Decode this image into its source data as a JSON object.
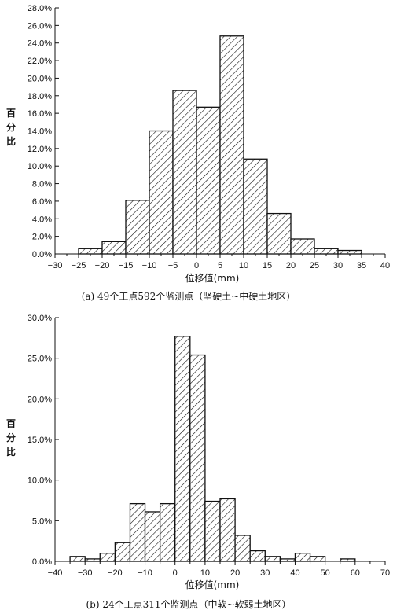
{
  "chart_data": [
    {
      "type": "bar",
      "ylabel_chars": [
        "百",
        "分",
        "比"
      ],
      "xlabel": "位移值(mm)",
      "caption": "(a) 49个工点592个监测点（坚硬土~中硬土地区）",
      "xlim": [
        -30,
        40
      ],
      "ylim": [
        0,
        28
      ],
      "xticks": [
        -30,
        -25,
        -20,
        -15,
        -10,
        -5,
        0,
        5,
        10,
        15,
        20,
        25,
        30,
        35,
        40
      ],
      "xtick_labels": [
        "−30",
        "−25",
        "−20",
        "−15",
        "−10",
        "−5",
        "0",
        "5",
        "10",
        "15",
        "20",
        "25",
        "30",
        "35",
        "40"
      ],
      "yticks": [
        0,
        2,
        4,
        6,
        8,
        10,
        12,
        14,
        16,
        18,
        20,
        22,
        24,
        26,
        28
      ],
      "ytick_labels": [
        "0.0%",
        "2.0%",
        "4.0%",
        "6.0%",
        "8.0%",
        "10.0%",
        "12.0%",
        "14.0%",
        "16.0%",
        "18.0%",
        "20.0%",
        "22.0%",
        "24.0%",
        "26.0%",
        "28.0%"
      ],
      "bin_width": 5,
      "bars": [
        {
          "x": -25,
          "value": 0.6
        },
        {
          "x": -20,
          "value": 1.4
        },
        {
          "x": -15,
          "value": 6.1
        },
        {
          "x": -10,
          "value": 14.0
        },
        {
          "x": -5,
          "value": 18.6
        },
        {
          "x": 0,
          "value": 16.7
        },
        {
          "x": 5,
          "value": 24.8
        },
        {
          "x": 10,
          "value": 10.8
        },
        {
          "x": 15,
          "value": 4.6
        },
        {
          "x": 20,
          "value": 1.7
        },
        {
          "x": 25,
          "value": 0.6
        },
        {
          "x": 30,
          "value": 0.4
        }
      ]
    },
    {
      "type": "bar",
      "ylabel_chars": [
        "百",
        "分",
        "比"
      ],
      "xlabel": "位移值(mm)",
      "caption": "(b) 24个工点311个监测点（中软~软弱土地区）",
      "xlim": [
        -40,
        70
      ],
      "ylim": [
        0,
        30
      ],
      "xticks": [
        -40,
        -30,
        -20,
        -10,
        0,
        10,
        20,
        30,
        40,
        50,
        60,
        70
      ],
      "xtick_labels": [
        "−40",
        "−30",
        "−20",
        "−10",
        "0",
        "10",
        "20",
        "30",
        "40",
        "50",
        "60",
        "70"
      ],
      "yticks": [
        0,
        5,
        10,
        15,
        20,
        25,
        30
      ],
      "ytick_labels": [
        "0.0%",
        "5.0%",
        "10.0%",
        "15.0%",
        "20.0%",
        "25.0%",
        "30.0%"
      ],
      "bin_width": 5,
      "bars": [
        {
          "x": -35,
          "value": 0.6
        },
        {
          "x": -30,
          "value": 0.3
        },
        {
          "x": -25,
          "value": 1.0
        },
        {
          "x": -20,
          "value": 2.3
        },
        {
          "x": -15,
          "value": 7.1
        },
        {
          "x": -10,
          "value": 6.1
        },
        {
          "x": -5,
          "value": 7.1
        },
        {
          "x": 0,
          "value": 27.7
        },
        {
          "x": 5,
          "value": 25.4
        },
        {
          "x": 10,
          "value": 7.4
        },
        {
          "x": 15,
          "value": 7.7
        },
        {
          "x": 20,
          "value": 3.2
        },
        {
          "x": 25,
          "value": 1.3
        },
        {
          "x": 30,
          "value": 0.6
        },
        {
          "x": 35,
          "value": 0.3
        },
        {
          "x": 40,
          "value": 1.0
        },
        {
          "x": 45,
          "value": 0.6
        },
        {
          "x": 55,
          "value": 0.3
        }
      ]
    }
  ]
}
